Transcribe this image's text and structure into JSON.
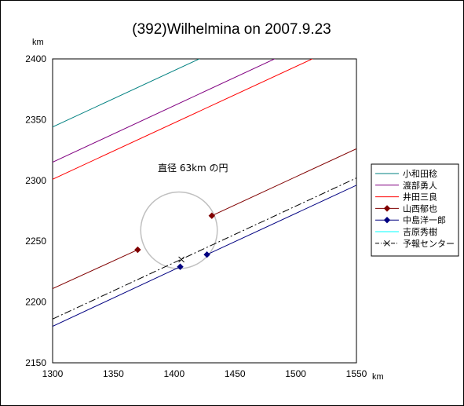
{
  "chart_data": {
    "type": "line",
    "title": "(392)Wilhelmina on 2007.9.23",
    "xlabel": "km",
    "ylabel": "km",
    "xlim": [
      1300,
      1550
    ],
    "ylim": [
      2150,
      2400
    ],
    "x_ticks": [
      "1300",
      "1350",
      "1400",
      "1450",
      "1500",
      "1550"
    ],
    "y_ticks": [
      "2150",
      "2200",
      "2250",
      "2300",
      "2350",
      "2400"
    ],
    "grid": false,
    "legend_position": "right",
    "annotation": "直径 63km の円",
    "circle": {
      "center": [
        1404,
        2259
      ],
      "radius": 31.5,
      "color": "#c0c0c0"
    },
    "series": [
      {
        "name": "小和田稔",
        "color": "#008080",
        "style": "solid",
        "marker": "none",
        "segments": [
          {
            "x": [
              1300,
              1425
            ],
            "y": [
              2344,
              2402
            ]
          }
        ]
      },
      {
        "name": "渡部勇人",
        "color": "#800080",
        "style": "solid",
        "marker": "none",
        "segments": [
          {
            "x": [
              1300,
              1487
            ],
            "y": [
              2315,
              2402
            ]
          }
        ]
      },
      {
        "name": "井田三良",
        "color": "#ff0000",
        "style": "solid",
        "marker": "none",
        "segments": [
          {
            "x": [
              1300,
              1518
            ],
            "y": [
              2301,
              2402
            ]
          }
        ]
      },
      {
        "name": "山西郁也",
        "color": "#800000",
        "style": "solid",
        "marker": "diamond",
        "segments": [
          {
            "x": [
              1300,
              1370
            ],
            "y": [
              2211,
              2243
            ]
          },
          {
            "x": [
              1431,
              1552
            ],
            "y": [
              2271,
              2327
            ]
          }
        ],
        "points": [
          [
            1370,
            2243
          ],
          [
            1431,
            2271
          ]
        ]
      },
      {
        "name": "中島洋一郎",
        "color": "#000080",
        "style": "solid",
        "marker": "diamond",
        "segments": [
          {
            "x": [
              1300,
              1405
            ],
            "y": [
              2180,
              2229
            ]
          },
          {
            "x": [
              1427,
              1552
            ],
            "y": [
              2239,
              2297
            ]
          }
        ],
        "points": [
          [
            1405,
            2229
          ],
          [
            1427,
            2239
          ]
        ]
      },
      {
        "name": "吉原秀樹",
        "color": "#00ffff",
        "style": "solid",
        "marker": "none",
        "segments": []
      },
      {
        "name": "予報センター",
        "color": "#000000",
        "style": "dashdot",
        "marker": "x",
        "segments": [
          {
            "x": [
              1300,
              1552
            ],
            "y": [
              2186,
              2303
            ]
          }
        ],
        "points": [
          [
            1406,
            2235
          ]
        ]
      }
    ]
  }
}
